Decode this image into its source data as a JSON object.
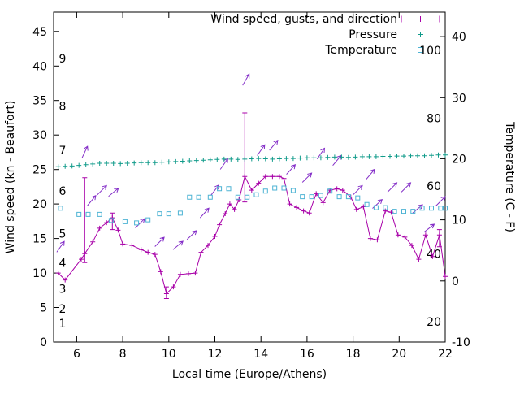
{
  "chart_data": {
    "type": "line",
    "title": "",
    "xlabel": "Local time (Europe/Athens)",
    "ylabel": "Wind speed (kn - Beaufort)",
    "y2label": "Temperature (C - F)",
    "legend_position": "top-right-inside",
    "grid": false,
    "xlim": [
      5,
      22
    ],
    "ylim": [
      0,
      47.8
    ],
    "y2lim": [
      -10,
      44
    ],
    "xticks": [
      6,
      8,
      10,
      12,
      14,
      16,
      18,
      20,
      22
    ],
    "yticks": [
      0,
      5,
      10,
      15,
      20,
      25,
      30,
      35,
      40,
      45
    ],
    "y2ticks": [
      -10,
      0,
      10,
      20,
      30,
      40
    ],
    "beaufort_scale_labels": [
      {
        "label": "1",
        "kn": 2.7
      },
      {
        "label": "2",
        "kn": 4.8
      },
      {
        "label": "3",
        "kn": 7.7
      },
      {
        "label": "4",
        "kn": 11.5
      },
      {
        "label": "5",
        "kn": 15.7
      },
      {
        "label": "6",
        "kn": 21.9
      },
      {
        "label": "7",
        "kn": 27.8
      },
      {
        "label": "8",
        "kn": 34.2
      },
      {
        "label": "9",
        "kn": 41.1
      }
    ],
    "fahrenheit_scale_labels": [
      {
        "label": "20",
        "f": 20
      },
      {
        "label": "40",
        "f": 40
      },
      {
        "label": "60",
        "f": 60
      },
      {
        "label": "80",
        "f": 80
      },
      {
        "label": "100",
        "f": 100
      }
    ],
    "series": [
      {
        "name": "Wind speed, gusts, and direction",
        "type": "line",
        "marker": "plus",
        "axis": "y1",
        "color": "#a800a8",
        "points": [
          [
            5.2,
            10
          ],
          [
            5.5,
            9
          ],
          [
            6.2,
            12
          ],
          [
            6.35,
            12.8
          ],
          [
            6.7,
            14.5
          ],
          [
            7.0,
            16.5
          ],
          [
            7.3,
            17.3
          ],
          [
            7.55,
            18
          ],
          [
            7.8,
            16.2
          ],
          [
            8.0,
            14.2
          ],
          [
            8.4,
            14
          ],
          [
            8.8,
            13.4
          ],
          [
            9.1,
            13
          ],
          [
            9.4,
            12.7
          ],
          [
            9.65,
            10.2
          ],
          [
            9.9,
            7
          ],
          [
            10.2,
            8
          ],
          [
            10.5,
            9.8
          ],
          [
            10.85,
            9.9
          ],
          [
            11.15,
            10
          ],
          [
            11.4,
            13
          ],
          [
            11.7,
            14
          ],
          [
            12.0,
            15.3
          ],
          [
            12.2,
            17
          ],
          [
            12.45,
            18.6
          ],
          [
            12.65,
            20
          ],
          [
            12.85,
            19.2
          ],
          [
            13.05,
            20.6
          ],
          [
            13.3,
            24
          ],
          [
            13.6,
            22
          ],
          [
            13.9,
            23
          ],
          [
            14.2,
            24
          ],
          [
            14.5,
            24
          ],
          [
            14.8,
            24
          ],
          [
            15.0,
            23.7
          ],
          [
            15.25,
            20
          ],
          [
            15.55,
            19.5
          ],
          [
            15.85,
            19
          ],
          [
            16.1,
            18.7
          ],
          [
            16.4,
            21.5
          ],
          [
            16.7,
            20.2
          ],
          [
            17.0,
            22
          ],
          [
            17.3,
            22.2
          ],
          [
            17.55,
            22
          ],
          [
            17.9,
            21
          ],
          [
            18.15,
            19.2
          ],
          [
            18.45,
            19.6
          ],
          [
            18.75,
            15
          ],
          [
            19.05,
            14.8
          ],
          [
            19.4,
            19
          ],
          [
            19.65,
            18.8
          ],
          [
            19.95,
            15.5
          ],
          [
            20.25,
            15.2
          ],
          [
            20.55,
            14
          ],
          [
            20.85,
            12
          ],
          [
            21.15,
            15.5
          ],
          [
            21.45,
            12.4
          ],
          [
            21.75,
            15.5
          ],
          [
            22.0,
            9.5
          ]
        ]
      },
      {
        "name": "Wind gusts",
        "type": "errorbar",
        "axis": "y1",
        "color": "#a800a8",
        "bars": [
          [
            6.35,
            11.5,
            23.8
          ],
          [
            7.55,
            16.3,
            18.7
          ],
          [
            9.9,
            6.3,
            8.0
          ],
          [
            13.3,
            20.3,
            33.2
          ],
          [
            21.75,
            13.8,
            16.3
          ]
        ]
      },
      {
        "name": "Wind direction",
        "type": "arrows",
        "axis": "y1",
        "color": "#8530c8",
        "arrows": [
          [
            5.3,
            13.8,
            55
          ],
          [
            6.35,
            27.5,
            65
          ],
          [
            6.65,
            20.5,
            50
          ],
          [
            7.1,
            22,
            45
          ],
          [
            7.6,
            21.7,
            40
          ],
          [
            8.75,
            17.2,
            45
          ],
          [
            9.6,
            14.5,
            45
          ],
          [
            10.4,
            14,
            40
          ],
          [
            11.0,
            15.5,
            42
          ],
          [
            11.55,
            18.7,
            48
          ],
          [
            12.0,
            22,
            52
          ],
          [
            12.4,
            25.8,
            55
          ],
          [
            13.35,
            38,
            60
          ],
          [
            14.0,
            27.8,
            55
          ],
          [
            14.55,
            28.5,
            50
          ],
          [
            15.3,
            25,
            48
          ],
          [
            16.0,
            23.8,
            45
          ],
          [
            16.6,
            27.3,
            55
          ],
          [
            17.3,
            26.3,
            50
          ],
          [
            18.2,
            22,
            45
          ],
          [
            18.75,
            24.3,
            50
          ],
          [
            19.05,
            20,
            42
          ],
          [
            19.7,
            22.4,
            45
          ],
          [
            20.3,
            22.4,
            45
          ],
          [
            20.8,
            19.3,
            40
          ],
          [
            21.3,
            16.5,
            38
          ],
          [
            21.8,
            20.4,
            45
          ]
        ]
      },
      {
        "name": "Pressure",
        "type": "scatter",
        "marker": "plus",
        "axis": "y1",
        "color": "#109b8a",
        "points": [
          [
            5.2,
            25.4
          ],
          [
            5.5,
            25.45
          ],
          [
            5.8,
            25.5
          ],
          [
            6.1,
            25.6
          ],
          [
            6.4,
            25.7
          ],
          [
            6.7,
            25.8
          ],
          [
            7.0,
            25.9
          ],
          [
            7.3,
            25.9
          ],
          [
            7.6,
            25.9
          ],
          [
            7.9,
            25.85
          ],
          [
            8.2,
            25.9
          ],
          [
            8.5,
            25.95
          ],
          [
            8.8,
            26.0
          ],
          [
            9.1,
            26.0
          ],
          [
            9.4,
            26.0
          ],
          [
            9.7,
            26.05
          ],
          [
            10.0,
            26.1
          ],
          [
            10.3,
            26.15
          ],
          [
            10.6,
            26.2
          ],
          [
            10.9,
            26.25
          ],
          [
            11.2,
            26.3
          ],
          [
            11.5,
            26.35
          ],
          [
            11.8,
            26.4
          ],
          [
            12.1,
            26.45
          ],
          [
            12.4,
            26.5
          ],
          [
            12.7,
            26.5
          ],
          [
            13.0,
            26.45
          ],
          [
            13.3,
            26.5
          ],
          [
            13.6,
            26.55
          ],
          [
            13.9,
            26.6
          ],
          [
            14.2,
            26.55
          ],
          [
            14.5,
            26.5
          ],
          [
            14.8,
            26.55
          ],
          [
            15.1,
            26.6
          ],
          [
            15.4,
            26.6
          ],
          [
            15.7,
            26.65
          ],
          [
            16.0,
            26.7
          ],
          [
            16.3,
            26.7
          ],
          [
            16.6,
            26.7
          ],
          [
            16.9,
            26.75
          ],
          [
            17.2,
            26.8
          ],
          [
            17.5,
            26.8
          ],
          [
            17.8,
            26.75
          ],
          [
            18.1,
            26.8
          ],
          [
            18.4,
            26.85
          ],
          [
            18.7,
            26.85
          ],
          [
            19.0,
            26.85
          ],
          [
            19.3,
            26.9
          ],
          [
            19.6,
            26.9
          ],
          [
            19.9,
            26.95
          ],
          [
            20.2,
            26.95
          ],
          [
            20.5,
            27.0
          ],
          [
            20.8,
            27.0
          ],
          [
            21.1,
            27.0
          ],
          [
            21.4,
            27.05
          ],
          [
            21.7,
            27.1
          ],
          [
            22.0,
            27.1
          ]
        ]
      },
      {
        "name": "Temperature",
        "type": "scatter",
        "marker": "open-square",
        "axis": "y2",
        "color": "#4db3d4",
        "points": [
          [
            5.3,
            11.9
          ],
          [
            6.1,
            10.9
          ],
          [
            6.5,
            10.9
          ],
          [
            7.0,
            10.9
          ],
          [
            7.5,
            9.9
          ],
          [
            8.1,
            9.7
          ],
          [
            8.6,
            9.5
          ],
          [
            9.1,
            10.0
          ],
          [
            9.6,
            11.0
          ],
          [
            10.0,
            11.0
          ],
          [
            10.5,
            11.1
          ],
          [
            10.9,
            13.7
          ],
          [
            11.3,
            13.7
          ],
          [
            11.8,
            13.7
          ],
          [
            12.2,
            15.1
          ],
          [
            12.6,
            15.1
          ],
          [
            13.0,
            13.7
          ],
          [
            13.4,
            13.7
          ],
          [
            13.8,
            14.1
          ],
          [
            14.2,
            14.7
          ],
          [
            14.6,
            15.2
          ],
          [
            15.0,
            15.2
          ],
          [
            15.4,
            14.8
          ],
          [
            15.8,
            13.8
          ],
          [
            16.2,
            13.8
          ],
          [
            16.6,
            14.0
          ],
          [
            17.0,
            14.7
          ],
          [
            17.4,
            13.8
          ],
          [
            17.8,
            13.8
          ],
          [
            18.2,
            13.6
          ],
          [
            18.6,
            12.5
          ],
          [
            19.0,
            12.0
          ],
          [
            19.4,
            12.0
          ],
          [
            19.8,
            11.4
          ],
          [
            20.2,
            11.4
          ],
          [
            20.6,
            11.4
          ],
          [
            21.0,
            11.9
          ],
          [
            21.4,
            11.9
          ],
          [
            21.8,
            11.9
          ],
          [
            22.0,
            11.9
          ]
        ]
      }
    ]
  }
}
